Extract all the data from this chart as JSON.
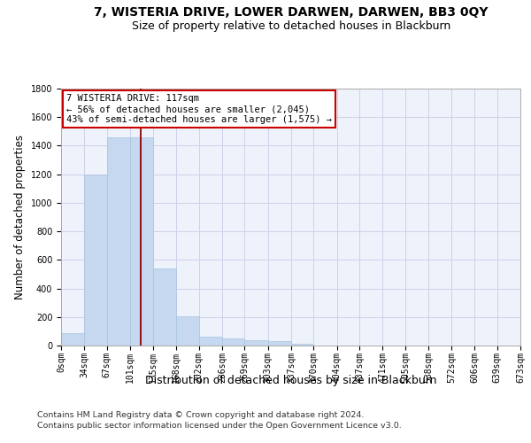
{
  "title_line1": "7, WISTERIA DRIVE, LOWER DARWEN, DARWEN, BB3 0QY",
  "title_line2": "Size of property relative to detached houses in Blackburn",
  "xlabel": "Distribution of detached houses by size in Blackburn",
  "ylabel": "Number of detached properties",
  "bar_values": [
    90,
    1200,
    1460,
    1460,
    540,
    205,
    65,
    48,
    38,
    28,
    15,
    0,
    0,
    0,
    0,
    0,
    0,
    0,
    0,
    0
  ],
  "bar_edges": [
    0,
    34,
    67,
    101,
    135,
    168,
    202,
    236,
    269,
    303,
    337,
    370,
    404,
    437,
    471,
    505,
    538,
    572,
    606,
    639,
    673
  ],
  "tick_labels": [
    "0sqm",
    "34sqm",
    "67sqm",
    "101sqm",
    "135sqm",
    "168sqm",
    "202sqm",
    "236sqm",
    "269sqm",
    "303sqm",
    "337sqm",
    "370sqm",
    "404sqm",
    "437sqm",
    "471sqm",
    "505sqm",
    "538sqm",
    "572sqm",
    "606sqm",
    "639sqm",
    "673sqm"
  ],
  "bar_color": "#c5d8f0",
  "bar_edge_color": "#a8c4e0",
  "vline_x": 117,
  "vline_color": "#8b0000",
  "annotation_text": "7 WISTERIA DRIVE: 117sqm\n← 56% of detached houses are smaller (2,045)\n43% of semi-detached houses are larger (1,575) →",
  "annotation_box_color": "#ffffff",
  "annotation_box_edge": "#cc0000",
  "ylim": [
    0,
    1800
  ],
  "yticks": [
    0,
    200,
    400,
    600,
    800,
    1000,
    1200,
    1400,
    1600,
    1800
  ],
  "grid_color": "#d0d0e8",
  "background_color": "#eef2fb",
  "footer_line1": "Contains HM Land Registry data © Crown copyright and database right 2024.",
  "footer_line2": "Contains public sector information licensed under the Open Government Licence v3.0.",
  "title_fontsize": 10,
  "subtitle_fontsize": 9,
  "tick_fontsize": 7,
  "ylabel_fontsize": 8.5,
  "xlabel_fontsize": 9,
  "footer_fontsize": 6.8,
  "annot_fontsize": 7.5
}
